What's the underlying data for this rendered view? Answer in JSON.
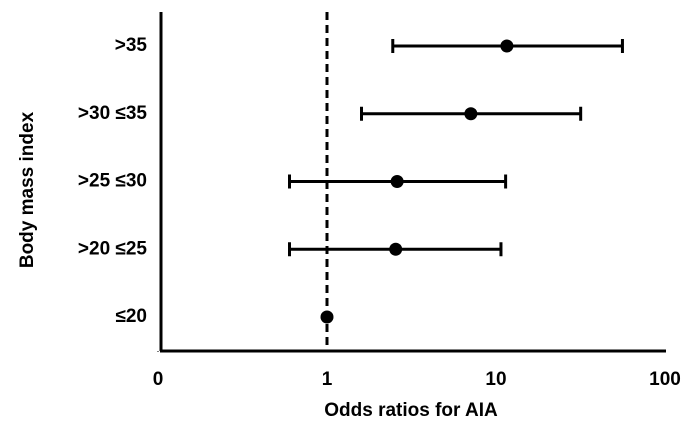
{
  "chart_data": {
    "type": "forest",
    "y_label": "Body mass index",
    "x_label": "Odds ratios for AIA",
    "categories": [
      ">35",
      ">30 ≤35",
      ">25 ≤30",
      ">20 ≤25",
      "≤20"
    ],
    "values": [
      11.6,
      7.1,
      2.6,
      2.55,
      1
    ],
    "ci_low": [
      2.45,
      1.6,
      0.6,
      0.6,
      null
    ],
    "ci_high": [
      56,
      31.7,
      11.4,
      10.7,
      null
    ],
    "color": "#000000",
    "log_x": true,
    "xlim": [
      0.1,
      100
    ],
    "xticks": [
      {
        "value": 0.1,
        "label": "0"
      },
      1,
      10,
      100
    ],
    "reference_line": 1
  }
}
